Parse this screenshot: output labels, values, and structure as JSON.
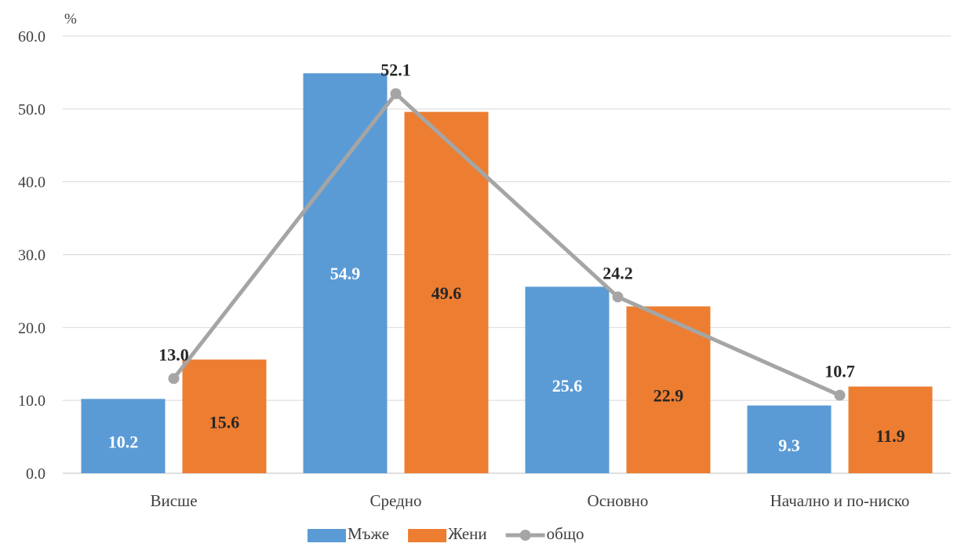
{
  "chart_data": {
    "type": "bar",
    "y_unit_label": "%",
    "categories": [
      "Висше",
      "Средно",
      "Основно",
      "Начално и по-ниско"
    ],
    "series": [
      {
        "name": "Мъже",
        "type": "bar",
        "color": "#5B9BD5",
        "label_color": "#ffffff",
        "values": [
          10.2,
          54.9,
          25.6,
          9.3
        ],
        "labels": [
          "10.2",
          "54.9",
          "25.6",
          "9.3"
        ]
      },
      {
        "name": "Жени",
        "type": "bar",
        "color": "#ED7D31",
        "label_color": "#262626",
        "values": [
          15.6,
          49.6,
          22.9,
          11.9
        ],
        "labels": [
          "15.6",
          "49.6",
          "22.9",
          "11.9"
        ]
      },
      {
        "name": "общо",
        "type": "line",
        "color": "#A5A5A5",
        "values": [
          13.0,
          52.1,
          24.2,
          10.7
        ],
        "labels": [
          "13.0",
          "52.1",
          "24.2",
          "10.7"
        ]
      }
    ],
    "ylim": [
      0,
      60
    ],
    "yticks": [
      "0.0",
      "10.0",
      "20.0",
      "30.0",
      "40.0",
      "50.0",
      "60.0"
    ],
    "grid": true,
    "legend_position": "bottom"
  }
}
